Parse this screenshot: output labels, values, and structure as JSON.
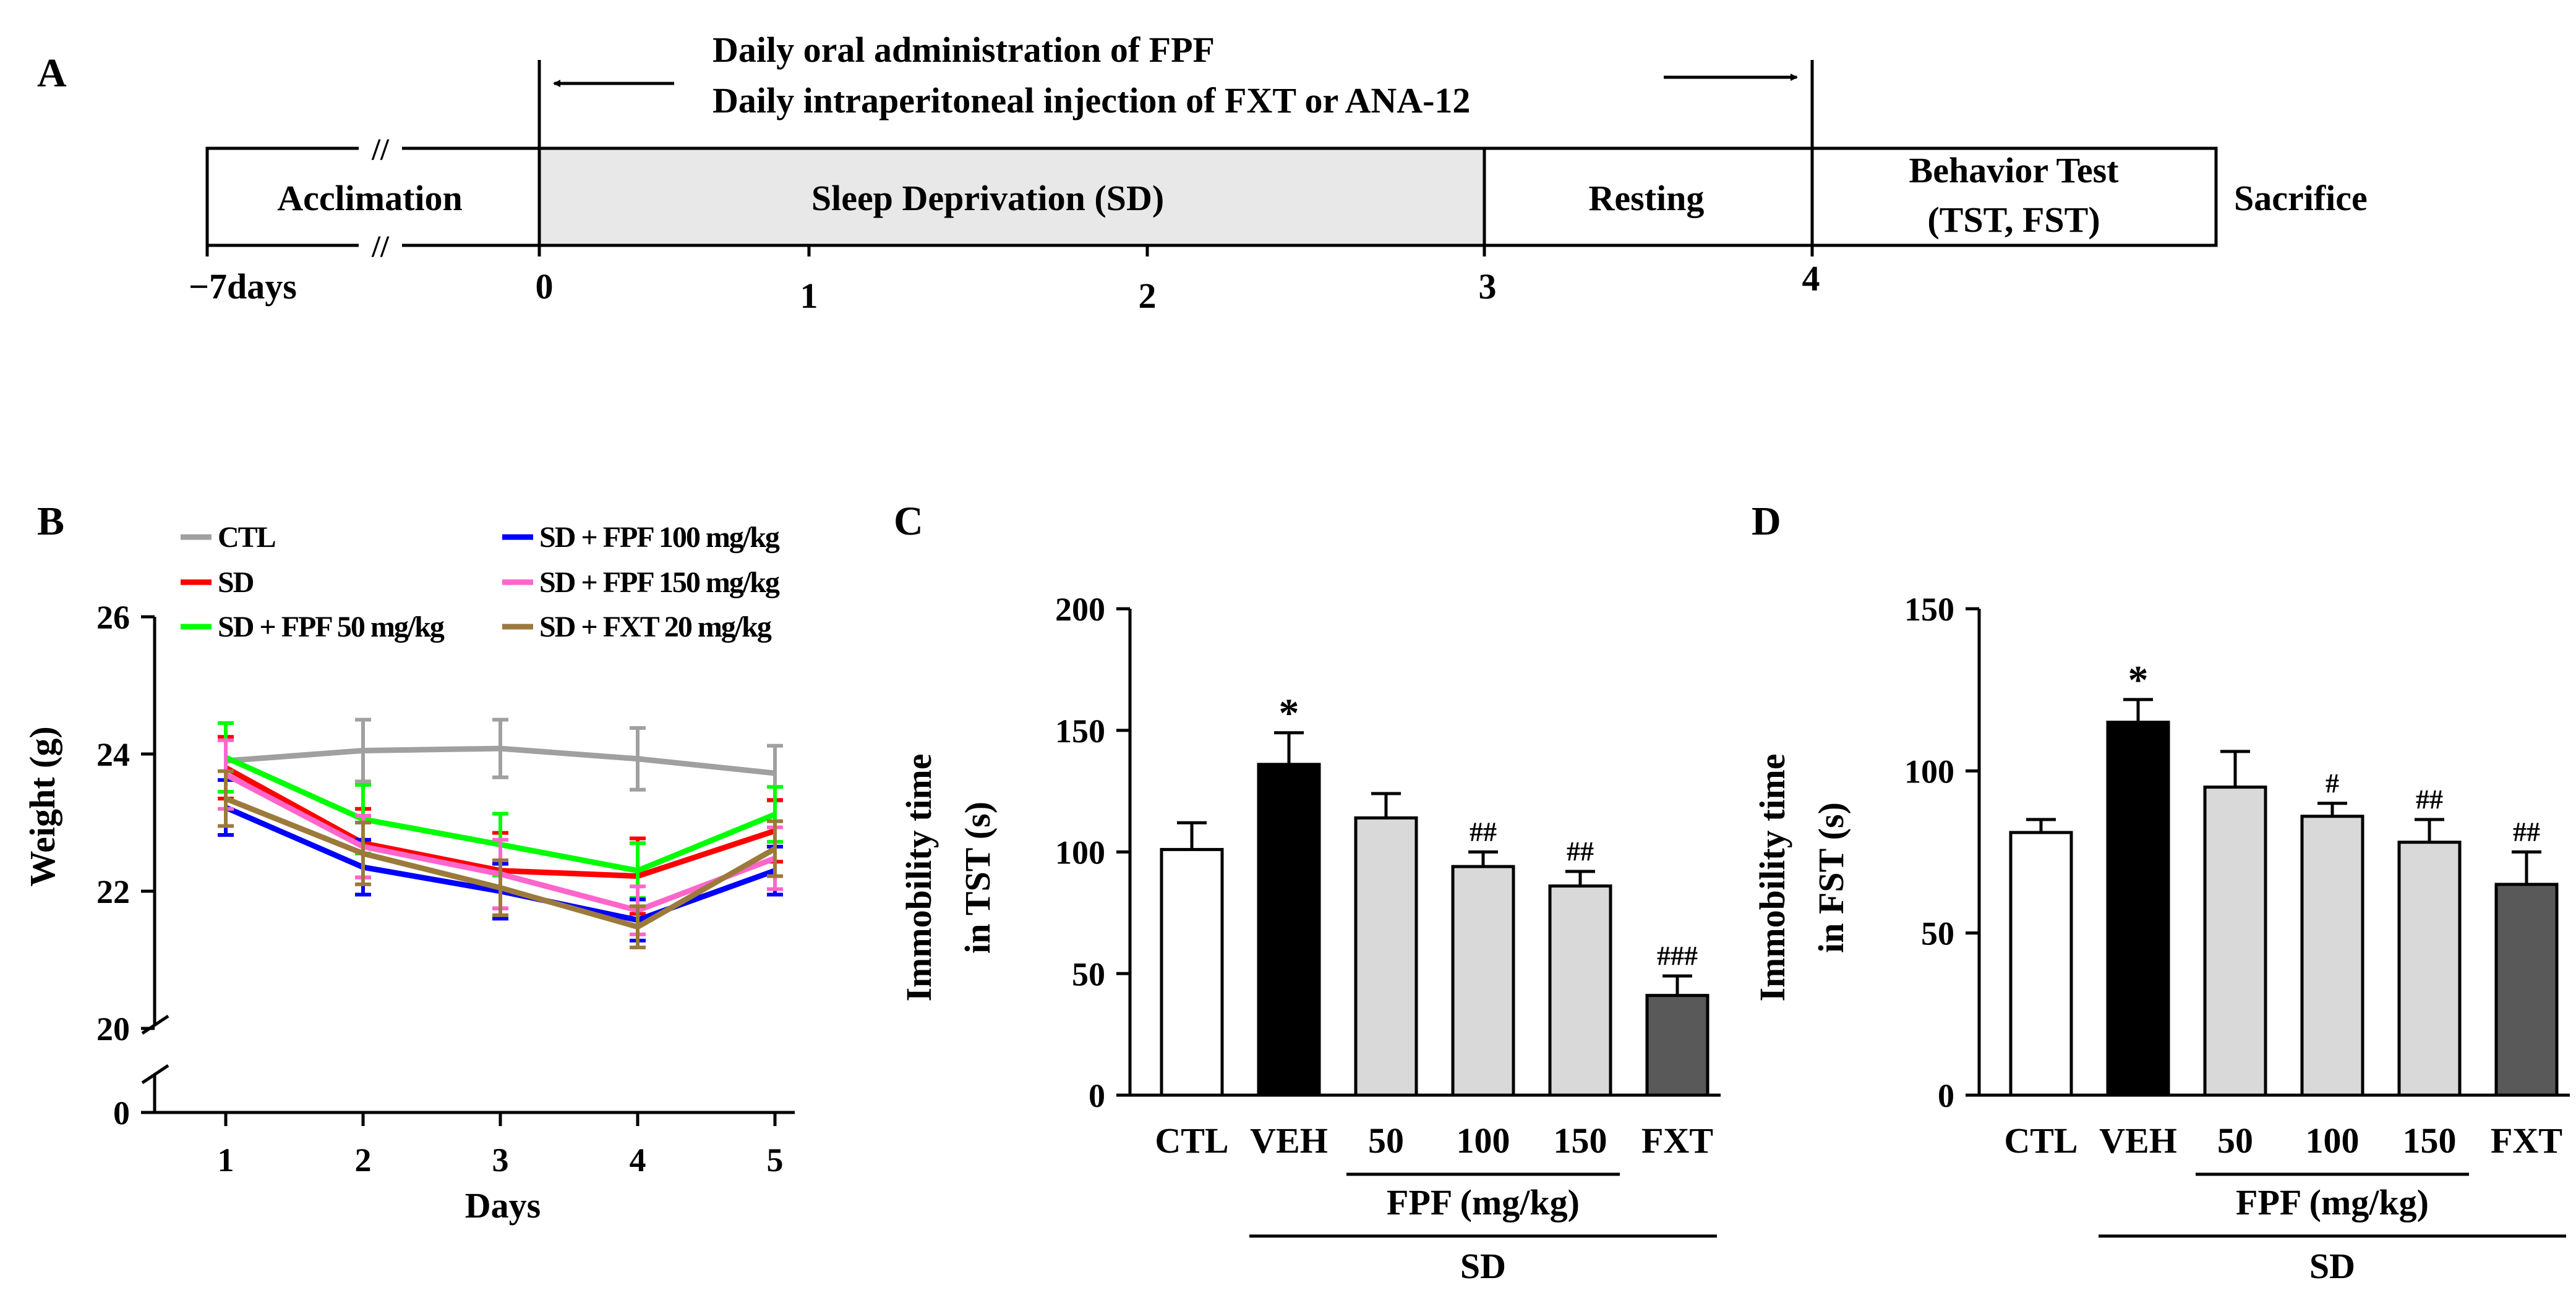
{
  "colors": {
    "ctl": "#a0a0a0",
    "sd": "#ff0000",
    "fpf50": "#00ff00",
    "fpf100": "#0000ff",
    "fpf150": "#ff66cc",
    "fxt": "#9c7a3c",
    "bar_ctl": "#ffffff",
    "bar_veh": "#000000",
    "bar_fpf": "#d9d9d9",
    "bar_fxt": "#595959",
    "sd_box": "#e8e8e8"
  },
  "panel_a": {
    "label": "A",
    "header_line1": "Daily oral administration of FPF",
    "header_line2": "Daily intraperitoneal injection of FXT or ANA-12",
    "segments": {
      "acclimation": "Acclimation",
      "sleep_deprivation": "Sleep Deprivation (SD)",
      "resting": "Resting",
      "behavior_line1": "Behavior Test",
      "behavior_line2": "(TST, FST)"
    },
    "sacrifice": "Sacrifice",
    "ticks": [
      "−7days",
      "0",
      "1",
      "2",
      "3",
      "4"
    ],
    "break_mark": "//"
  },
  "chart_data": [
    {
      "panel": "B",
      "type": "line",
      "xlabel": "Days",
      "ylabel": "Weight (g)",
      "x": [
        1,
        2,
        3,
        4,
        5
      ],
      "ylim": [
        20,
        26
      ],
      "yticks": [
        26,
        24,
        22,
        20,
        0
      ],
      "axis_break": "between 20 and 0",
      "legend_position": "top",
      "series": [
        {
          "key": "ctl",
          "name": "CTL",
          "values": [
            23.9,
            24.05,
            24.08,
            23.93,
            23.72
          ],
          "errors": [
            0.55,
            0.45,
            0.42,
            0.45,
            0.4
          ]
        },
        {
          "key": "sd",
          "name": "SD",
          "values": [
            23.8,
            22.7,
            22.3,
            22.22,
            22.88
          ],
          "errors": [
            0.45,
            0.5,
            0.55,
            0.55,
            0.45
          ]
        },
        {
          "key": "fpf50",
          "name": "SD + FPF 50 mg/kg",
          "values": [
            23.95,
            23.05,
            22.68,
            22.3,
            23.12
          ],
          "errors": [
            0.5,
            0.5,
            0.45,
            0.4,
            0.4
          ]
        },
        {
          "key": "fpf100",
          "name": "SD + FPF 100 mg/kg",
          "values": [
            23.22,
            22.35,
            22.0,
            21.58,
            22.3
          ],
          "errors": [
            0.4,
            0.4,
            0.4,
            0.3,
            0.35
          ]
        },
        {
          "key": "fpf150",
          "name": "SD + FPF 150 mg/kg",
          "values": [
            23.7,
            22.65,
            22.25,
            21.72,
            22.48
          ],
          "errors": [
            0.5,
            0.45,
            0.5,
            0.35,
            0.45
          ]
        },
        {
          "key": "fxt",
          "name": "SD + FXT 20 mg/kg",
          "values": [
            23.35,
            22.55,
            22.05,
            21.48,
            22.62
          ],
          "errors": [
            0.4,
            0.45,
            0.4,
            0.3,
            0.4
          ]
        }
      ]
    },
    {
      "panel": "C",
      "type": "bar",
      "ylabel_line1": "Immobility time",
      "ylabel_line2": "in TST (s)",
      "ylim": [
        0,
        200
      ],
      "yticks": [
        0,
        50,
        100,
        150,
        200
      ],
      "categories": [
        "CTL",
        "VEH",
        "50",
        "100",
        "150",
        "FXT"
      ],
      "values": [
        101,
        136,
        114,
        94,
        86,
        41
      ],
      "errors": [
        11,
        13,
        10,
        6,
        6,
        8
      ],
      "annotations": [
        "",
        "*",
        "",
        "##",
        "##",
        "###"
      ],
      "group_label": "FPF (mg/kg)",
      "sd_label": "SD"
    },
    {
      "panel": "D",
      "type": "bar",
      "ylabel_line1": "Immobility time",
      "ylabel_line2": "in FST (s)",
      "ylim": [
        0,
        150
      ],
      "yticks": [
        0,
        50,
        100,
        150
      ],
      "categories": [
        "CTL",
        "VEH",
        "50",
        "100",
        "150",
        "FXT"
      ],
      "values": [
        81,
        115,
        95,
        86,
        78,
        65
      ],
      "errors": [
        4,
        7,
        11,
        4,
        7,
        10
      ],
      "annotations": [
        "",
        "*",
        "",
        "#",
        "##",
        "##"
      ],
      "group_label": "FPF (mg/kg)",
      "sd_label": "SD"
    }
  ]
}
